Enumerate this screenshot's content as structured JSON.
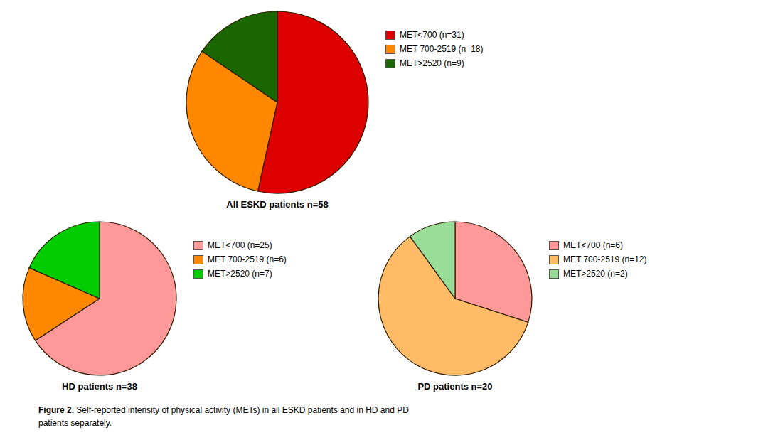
{
  "chart_data": [
    {
      "type": "pie",
      "title": "All ESKD patients n=58",
      "categories": [
        "MET<700 (n=31)",
        "MET 700-2519 (n=18)",
        "MET>2520 (n=9)"
      ],
      "values": [
        31,
        18,
        9
      ],
      "colors": [
        "#dd0000",
        "#ff8800",
        "#1a6600"
      ],
      "legend": "right"
    },
    {
      "type": "pie",
      "title": "HD patients n=38",
      "categories": [
        "MET<700 (n=25)",
        "MET 700-2519 (n=6)",
        "MET>2520 (n=7)"
      ],
      "values": [
        25,
        6,
        7
      ],
      "colors": [
        "#ff9999",
        "#ff8800",
        "#00cc00"
      ],
      "legend": "right"
    },
    {
      "type": "pie",
      "title": "PD patients n=20",
      "categories": [
        "MET<700 (n=6)",
        "MET 700-2519 (n=12)",
        "MET>2520 (n=2)"
      ],
      "values": [
        6,
        12,
        2
      ],
      "colors": [
        "#ff9999",
        "#ffbb66",
        "#99dd99"
      ],
      "legend": "right"
    }
  ],
  "caption": [
    "Figure 2.",
    " Self-reported intensity of physical activity (METs) in all ESKD patients and in HD and PD",
    "patients separately."
  ]
}
